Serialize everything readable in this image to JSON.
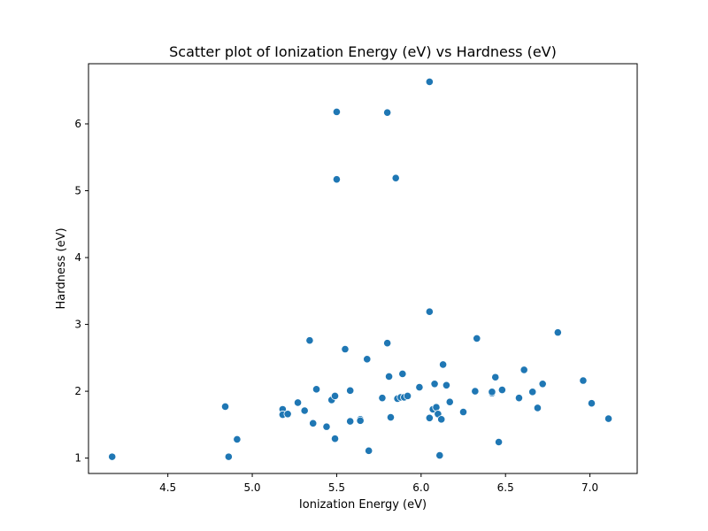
{
  "chart_data": {
    "type": "scatter",
    "title": "Scatter plot of Ionization Energy (eV) vs Hardness  (eV)",
    "xlabel": "Ionization Energy (eV)",
    "ylabel": "Hardness  (eV)",
    "xlim": [
      4.03,
      7.28
    ],
    "ylim": [
      0.77,
      6.9
    ],
    "xticks": [
      4.5,
      5.0,
      5.5,
      6.0,
      6.5,
      7.0
    ],
    "xtick_labels": [
      "4.5",
      "5.0",
      "5.5",
      "6.0",
      "6.5",
      "7.0"
    ],
    "yticks": [
      1,
      2,
      3,
      4,
      5,
      6
    ],
    "ytick_labels": [
      "1",
      "2",
      "3",
      "4",
      "5",
      "6"
    ],
    "grid": false,
    "color": "#1f77b4",
    "points": [
      [
        4.17,
        1.02
      ],
      [
        4.84,
        1.77
      ],
      [
        4.86,
        1.02
      ],
      [
        4.91,
        1.28
      ],
      [
        5.18,
        1.73
      ],
      [
        5.18,
        1.65
      ],
      [
        5.21,
        1.66
      ],
      [
        5.27,
        1.83
      ],
      [
        5.31,
        1.71
      ],
      [
        5.34,
        2.76
      ],
      [
        5.36,
        1.52
      ],
      [
        5.38,
        2.03
      ],
      [
        5.44,
        1.47
      ],
      [
        5.47,
        1.87
      ],
      [
        5.49,
        1.29
      ],
      [
        5.49,
        1.93
      ],
      [
        5.5,
        6.18
      ],
      [
        5.5,
        5.17
      ],
      [
        5.55,
        2.63
      ],
      [
        5.58,
        2.01
      ],
      [
        5.58,
        1.55
      ],
      [
        5.64,
        1.58
      ],
      [
        5.64,
        1.56
      ],
      [
        5.68,
        2.48
      ],
      [
        5.69,
        1.11
      ],
      [
        5.77,
        1.9
      ],
      [
        5.8,
        6.17
      ],
      [
        5.8,
        2.72
      ],
      [
        5.81,
        2.22
      ],
      [
        5.82,
        1.61
      ],
      [
        5.85,
        5.19
      ],
      [
        5.86,
        1.89
      ],
      [
        5.88,
        1.91
      ],
      [
        5.89,
        2.26
      ],
      [
        5.9,
        1.91
      ],
      [
        5.92,
        1.93
      ],
      [
        5.99,
        2.06
      ],
      [
        6.05,
        6.63
      ],
      [
        6.05,
        3.19
      ],
      [
        6.05,
        1.6
      ],
      [
        6.07,
        1.73
      ],
      [
        6.08,
        2.11
      ],
      [
        6.09,
        1.76
      ],
      [
        6.1,
        1.66
      ],
      [
        6.11,
        1.04
      ],
      [
        6.12,
        1.58
      ],
      [
        6.13,
        2.4
      ],
      [
        6.15,
        2.09
      ],
      [
        6.17,
        1.84
      ],
      [
        6.25,
        1.69
      ],
      [
        6.32,
        2.0
      ],
      [
        6.33,
        2.79
      ],
      [
        6.42,
        1.97
      ],
      [
        6.42,
        1.99
      ],
      [
        6.44,
        2.21
      ],
      [
        6.46,
        1.24
      ],
      [
        6.48,
        2.02
      ],
      [
        6.58,
        1.9
      ],
      [
        6.61,
        2.32
      ],
      [
        6.66,
        1.99
      ],
      [
        6.69,
        1.75
      ],
      [
        6.72,
        2.11
      ],
      [
        6.81,
        2.88
      ],
      [
        6.96,
        2.16
      ],
      [
        7.01,
        1.82
      ],
      [
        7.11,
        1.59
      ]
    ]
  }
}
